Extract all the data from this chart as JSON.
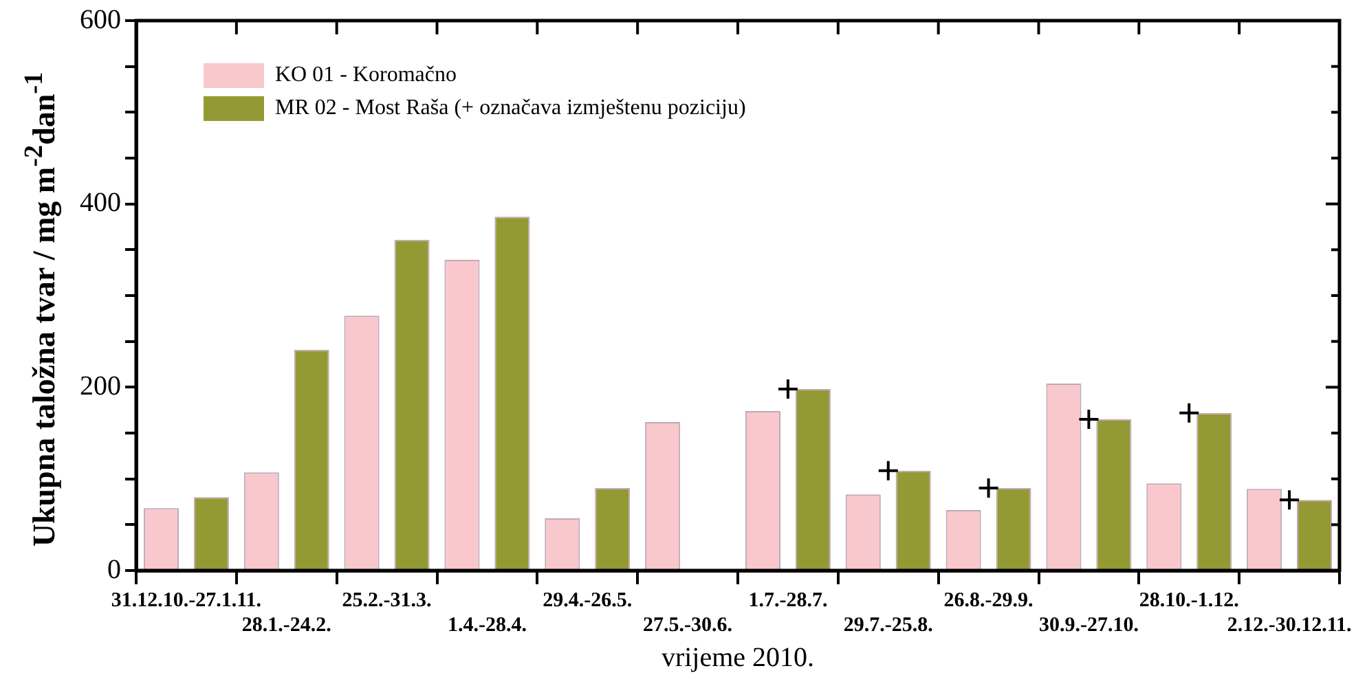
{
  "chart_data": {
    "type": "bar",
    "xlabel": "vrijeme 2010.",
    "ylabel": "Ukupna taložna tvar / mg m$^{-2}$dan$^{-1}$",
    "categories": [
      "31.12.10.-27.1.11.",
      "28.1.-24.2.",
      "25.2.-31.3.",
      "1.4.-28.4.",
      "29.4.-26.5.",
      "27.5.-30.6.",
      "1.7.-28.7.",
      "29.7.-25.8.",
      "26.8.-29.9.",
      "30.9.-27.10.",
      "28.10.-1.12.",
      "2.12.-30.12.11."
    ],
    "series": [
      {
        "name": "KO 01 - Koromačno",
        "color": "#f8c8cc",
        "values": [
          68,
          107,
          278,
          339,
          57,
          162,
          174,
          83,
          66,
          204,
          95,
          89
        ]
      },
      {
        "name": "MR 02 - Most Raša (+ označava izmještenu poziciju)",
        "color": "#939a34",
        "values": [
          80,
          241,
          361,
          386,
          90,
          null,
          198,
          109,
          90,
          165,
          172,
          77
        ]
      },
      {
        "type": "scatter",
        "color": "#000000",
        "marker": "cross",
        "x": [
          "1.7.-28.7.",
          "29.7.-25.8.",
          "26.8.-29.9.",
          "30.9.-27.10.",
          "28.10.-1.12.",
          "2.12.-30.12.11."
        ],
        "values": [
          198,
          109,
          90,
          165,
          172,
          77
        ]
      }
    ],
    "ylim": [
      0,
      600
    ],
    "yticks": [
      0,
      {
        "value": 50,
        "label": null
      },
      {
        "value": 100,
        "label": null
      },
      {
        "value": 150,
        "label": null
      },
      200,
      {
        "value": 250,
        "label": null
      },
      {
        "value": 300,
        "label": null
      },
      {
        "value": 350,
        "label": null
      },
      400,
      {
        "value": 450,
        "label": null
      },
      {
        "value": 500,
        "label": null
      },
      {
        "value": 550,
        "label": null
      },
      600
    ],
    "grid": false,
    "legend": "top left"
  }
}
